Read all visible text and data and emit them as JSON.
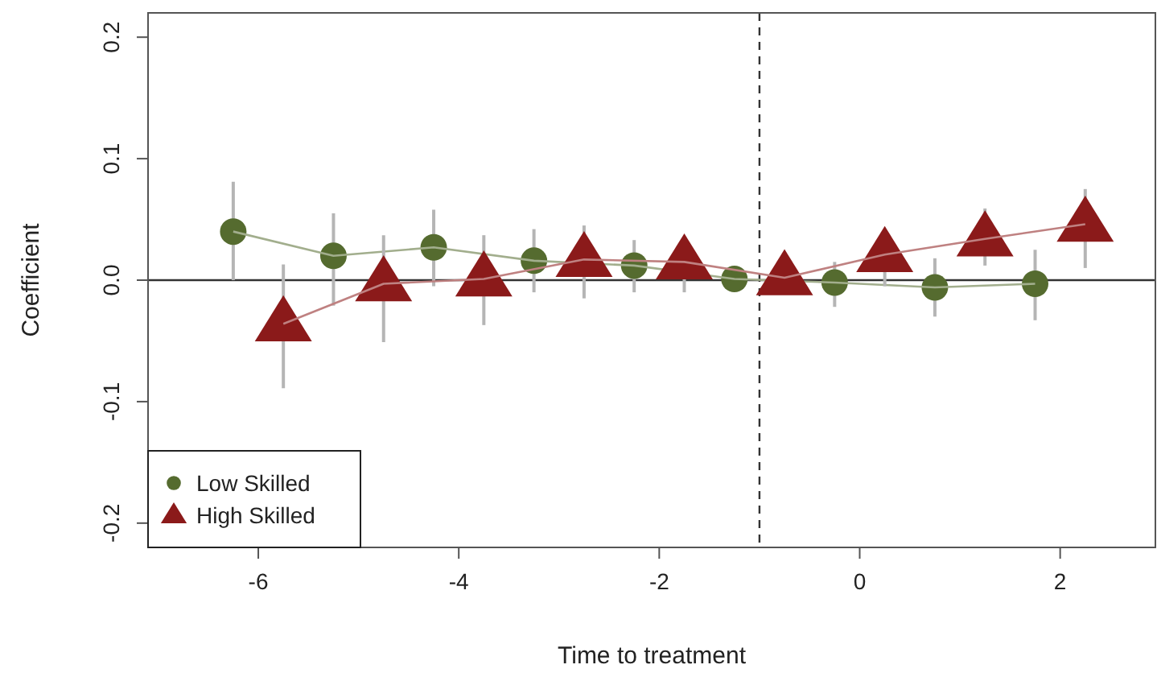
{
  "chart_data": {
    "type": "line",
    "xlabel": "Time to treatment",
    "ylabel": "Coefficient",
    "xlim": [
      -7.1,
      2.95
    ],
    "ylim": [
      -0.22,
      0.22
    ],
    "xticks": [
      -6,
      -4,
      -2,
      0,
      2
    ],
    "yticks": [
      {
        "value": -0.2,
        "label": "-0.2"
      },
      {
        "value": -0.1,
        "label": "-0.1"
      },
      {
        "value": 0,
        "label": "0.0"
      },
      {
        "value": 0.1,
        "label": "0.1"
      },
      {
        "value": 0.2,
        "label": "0.2"
      }
    ],
    "grid": false,
    "legend": "bottom left",
    "series": [
      {
        "name": "Low Skilled",
        "color": "#556b2f",
        "marker": "circle",
        "x": [
          -6.25,
          -5.25,
          -4.25,
          -3.25,
          -2.25,
          -1.25,
          -0.25,
          0.75,
          1.75
        ],
        "values": [
          0.04,
          0.02,
          0.027,
          0.016,
          0.012,
          0.001,
          -0.002,
          -0.006,
          -0.003
        ],
        "errors": [
          [
            0.0,
            0.081
          ],
          [
            -0.021,
            0.055
          ],
          [
            -0.005,
            0.058
          ],
          [
            -0.01,
            0.042
          ],
          [
            -0.01,
            0.033
          ],
          null,
          [
            -0.022,
            0.015
          ],
          [
            -0.03,
            0.018
          ],
          [
            -0.033,
            0.025
          ]
        ]
      },
      {
        "name": "High Skilled",
        "color": "#8b1a1a",
        "marker": "triangle",
        "x": [
          -5.75,
          -4.75,
          -3.75,
          -2.75,
          -1.75,
          -0.75,
          0.25,
          1.25,
          2.25
        ],
        "values": [
          -0.036,
          -0.003,
          0.001,
          0.017,
          0.015,
          0.002,
          0.021,
          0.034,
          0.046
        ],
        "errors": [
          [
            -0.089,
            0.013
          ],
          [
            -0.051,
            0.037
          ],
          [
            -0.037,
            0.037
          ],
          [
            -0.015,
            0.045
          ],
          [
            -0.01,
            0.035
          ],
          null,
          [
            -0.005,
            0.04
          ],
          [
            0.012,
            0.059
          ],
          [
            0.01,
            0.075
          ]
        ]
      }
    ],
    "ref_lines": [
      {
        "axis": "x",
        "value": -1,
        "line_style": "dashed",
        "color": "#333333"
      },
      {
        "axis": "y",
        "value": 0,
        "line_style": "solid",
        "color": "#333333"
      }
    ]
  }
}
